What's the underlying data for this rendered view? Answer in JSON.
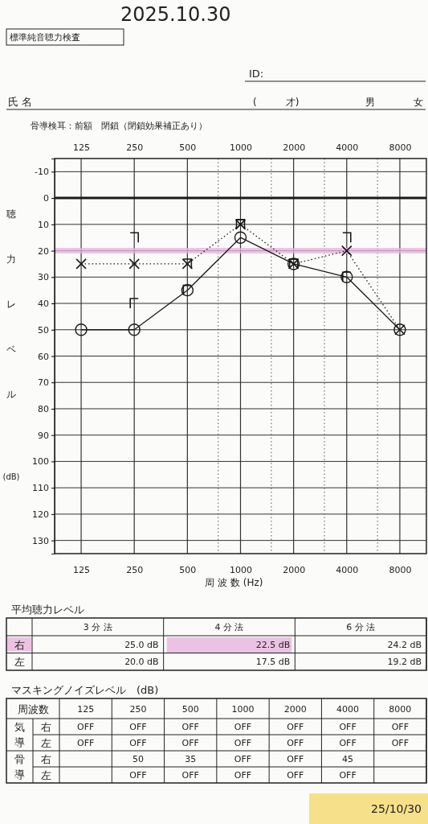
{
  "chart_data": [
    {
      "type": "line",
      "title": "標準純音聴力検査",
      "annotations": [
        "2025.10.30",
        "ID:",
        "氏 名",
        "(　　　才)",
        "男",
        "女",
        "骨導検耳：前額　閉鎖（閉鎖効果補正あり）"
      ],
      "categories": [
        "125",
        "250",
        "500",
        "1000",
        "2000",
        "4000",
        "8000"
      ],
      "xlabel": "周 波 数 (Hz)",
      "ylabel": "聴力レベル(dB)",
      "ylim": [
        135,
        -15
      ],
      "yticks": [
        -10,
        0,
        10,
        20,
        30,
        40,
        50,
        60,
        70,
        80,
        90,
        100,
        110,
        120,
        130
      ],
      "grid": true,
      "ref_lines": [
        {
          "axis": "y",
          "value": 0,
          "color": "#1a1a1a"
        },
        {
          "axis": "y",
          "value": 20,
          "color": "#e8b4dc"
        }
      ],
      "series": [
        {
          "type": "line",
          "color": "#1a1a1a",
          "marker": "circle",
          "line_style": "solid",
          "values": [
            50,
            50,
            35,
            15,
            25,
            30,
            50
          ]
        },
        {
          "type": "line",
          "color": "#1a1a1a",
          "marker": "cross",
          "line_style": "dotted",
          "values": [
            25,
            25,
            25,
            10,
            25,
            20,
            50
          ]
        },
        {
          "type": "scatter",
          "color": "#1a1a1a",
          "values": [
            null,
            40,
            35,
            10,
            25,
            30,
            null
          ]
        },
        {
          "type": "scatter",
          "color": "#1a1a1a",
          "values": [
            null,
            15,
            25,
            10,
            25,
            15,
            null
          ]
        }
      ]
    },
    {
      "type": "other",
      "title": "平均聴力レベル",
      "categories": [
        "3 分 法",
        "4 分 法",
        "6 分 法"
      ],
      "y_categories": [
        "右",
        "左"
      ],
      "cell_labels": [
        [
          "25.0 dB",
          "22.5 dB",
          "24.2 dB"
        ],
        [
          "20.0 dB",
          "17.5 dB",
          "19.2 dB"
        ]
      ]
    },
    {
      "type": "other",
      "title": "マスキングノイズレベル　(dB)",
      "annotations": [
        "周波数",
        "気導",
        "骨導",
        "25/10/30"
      ],
      "categories": [
        "125",
        "250",
        "500",
        "1000",
        "2000",
        "4000",
        "8000"
      ],
      "y_categories": [
        "右",
        "左",
        "右",
        "左"
      ],
      "cell_labels": [
        [
          "OFF",
          "OFF",
          "OFF",
          "OFF",
          "OFF",
          "OFF",
          "OFF"
        ],
        [
          "OFF",
          "OFF",
          "OFF",
          "OFF",
          "OFF",
          "OFF",
          "OFF"
        ],
        [
          null,
          "50",
          "35",
          "OFF",
          "OFF",
          "45",
          null
        ],
        [
          null,
          "OFF",
          "OFF",
          "OFF",
          "OFF",
          "OFF",
          null
        ]
      ]
    }
  ]
}
